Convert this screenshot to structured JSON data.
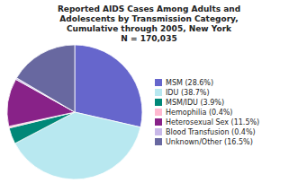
{
  "chart_data": {
    "type": "pie",
    "title": "Reported AIDS Cases Among Adults and\nAdolescents by Transmission Category,\nCumulative through 2005, New York\nN = 170,035",
    "categories": [
      "MSM (28.6%)",
      "IDU (38.7%)",
      "MSM/IDU (3.9%)",
      "Hemophilia (0.4%)",
      "Heterosexual Sex (11.5%)",
      "Blood Transfusion (0.4%)",
      "Unknown/Other (16.5%)"
    ],
    "values": [
      28.6,
      38.7,
      3.9,
      0.4,
      11.5,
      0.4,
      16.5
    ],
    "colors": [
      "#6666cc",
      "#b8e8f0",
      "#008878",
      "#ffb8d0",
      "#882288",
      "#c8b8e8",
      "#6868a0"
    ],
    "legend": "right"
  }
}
